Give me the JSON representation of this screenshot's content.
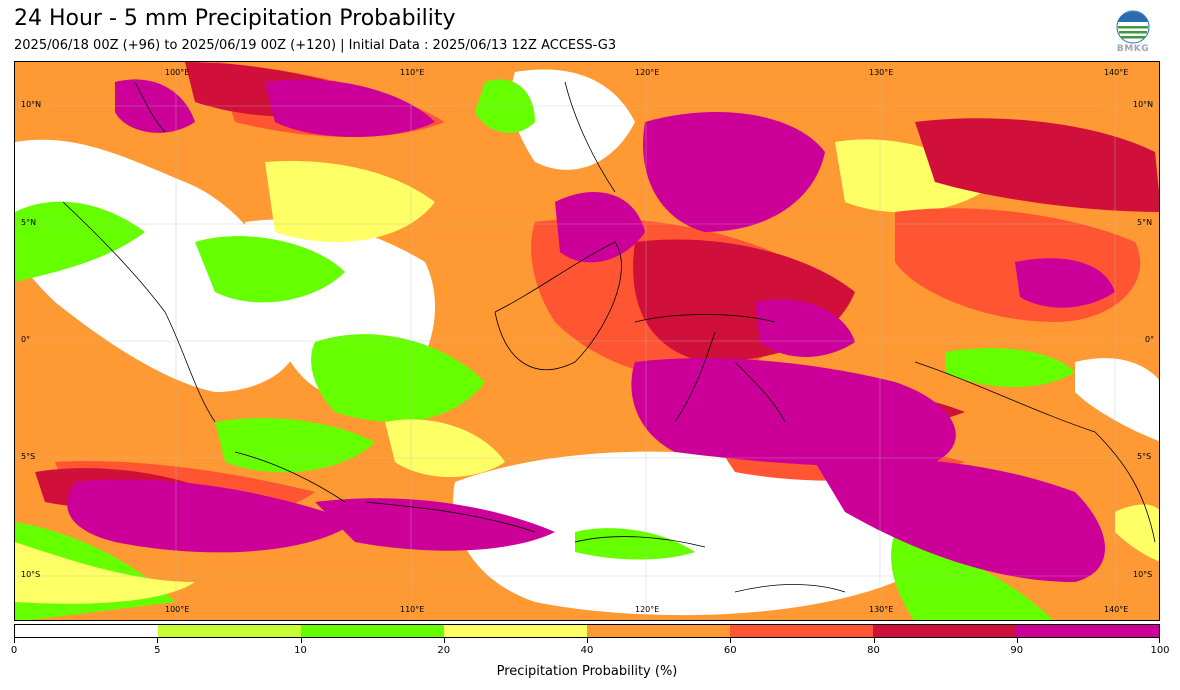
{
  "header": {
    "title": "24 Hour - 5 mm Precipitation Probability",
    "subtitle": "2025/06/18 00Z (+96) to 2025/06/19 00Z (+120) | Initial Data : 2025/06/13 12Z ACCESS-G3"
  },
  "logo": {
    "text": "BMKG",
    "icon": "bmkg-logo"
  },
  "map": {
    "lon_labels_top": [
      "100°E",
      "110°E",
      "120°E",
      "130°E",
      "140°E"
    ],
    "lon_labels_bottom": [
      "100°E",
      "110°E",
      "120°E",
      "130°E",
      "140°E"
    ],
    "lat_labels_left": [
      "10°N",
      "5°N",
      "0°",
      "5°S",
      "10°S"
    ],
    "lat_labels_right": [
      "10°N",
      "5°N",
      "0°",
      "5°S",
      "10°S"
    ]
  },
  "colorbar": {
    "label": "Precipitation Probability (%)",
    "ticks": [
      "0",
      "5",
      "10",
      "20",
      "40",
      "60",
      "80",
      "90",
      "100"
    ],
    "colors": [
      "#ffffff",
      "#c6ff33",
      "#66ff00",
      "#ffff66",
      "#ff9933",
      "#ff5533",
      "#d0103a",
      "#cc0099"
    ]
  }
}
